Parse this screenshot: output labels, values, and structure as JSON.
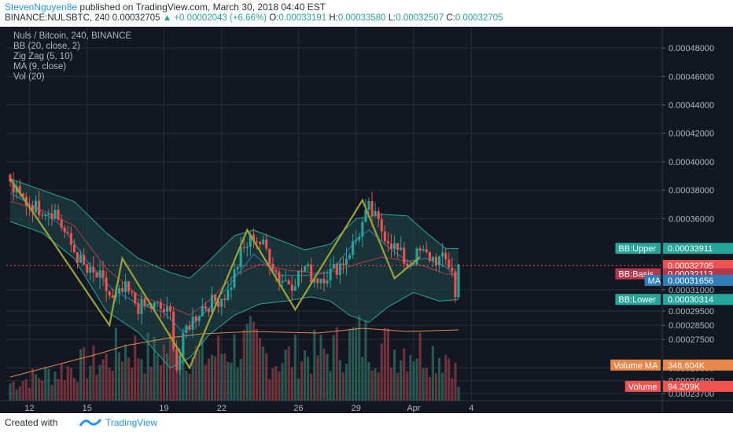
{
  "header": {
    "author": "StevenNguyen8e",
    "published_text": "published on TradingView.com, March 30, 2018 04:40 EST",
    "symbol": "BINANCE:NULSBTC, 240",
    "price": "0.00032705",
    "change": "+0.00002043 (+6.66%)",
    "o_label": "O:",
    "o": "0.00033191",
    "h_label": "H:",
    "h": "0.00033580",
    "l_label": "L:",
    "l": "0.00032507",
    "c_label": "C:",
    "c": "0.00032705"
  },
  "legend": [
    "Nuls / Bitcoin, 240, BINANCE",
    "BB (20, close, 2)",
    "Zig Zag (5, 10)",
    "MA (9, close)",
    "Vol (20)"
  ],
  "footer": {
    "created_with": "Created with",
    "brand": "TradingView"
  },
  "colors": {
    "background": "#131722",
    "grid": "#2a2e39",
    "text": "#b2b5be",
    "candle_up": "#26a69a",
    "candle_down": "#ef5350",
    "bb_line": "#26a69a",
    "bb_fill": "#1f4a4d",
    "bb_basis": "#b2384a",
    "ma": "#2e7db8",
    "zigzag": "#9aa337",
    "vol_up": "#2e6b5e",
    "vol_down": "#8a3a42",
    "vol_ma": "#e8874a"
  },
  "chart_data": {
    "type": "candlestick",
    "price_range": [
      0.000232,
      0.000495
    ],
    "price_ticks": [
      "0.00048000",
      "0.00046000",
      "0.00044000",
      "0.00042000",
      "0.00040000",
      "0.00038000",
      "0.00036000",
      "0.00031000",
      "0.00029500",
      "0.00028500",
      "0.00027500",
      "0.00025500",
      "0.00024600",
      "0.00023700"
    ],
    "x_ticks": [
      {
        "label": "12",
        "day": 12
      },
      {
        "label": "15",
        "day": 15
      },
      {
        "label": "19",
        "day": 19
      },
      {
        "label": "22",
        "day": 22
      },
      {
        "label": "26",
        "day": 26
      },
      {
        "label": "29",
        "day": 29
      },
      {
        "label": "Apr",
        "day": 32
      },
      {
        "label": "4",
        "day": 35
      }
    ],
    "first_day": 11.0,
    "bar_per_day": 6,
    "candle_points": [
      [
        0,
        0.000383
      ],
      [
        3,
        0.000375
      ],
      [
        8,
        0.000368
      ],
      [
        14,
        0.000365
      ],
      [
        18,
        0.000345
      ],
      [
        24,
        0.000322
      ],
      [
        28,
        0.000318
      ],
      [
        32,
        0.000302
      ],
      [
        36,
        0.00031
      ],
      [
        40,
        0.000298
      ],
      [
        46,
        0.000298
      ],
      [
        50,
        0.000292
      ],
      [
        52,
        0.000255
      ],
      [
        55,
        0.000283
      ],
      [
        60,
        0.000298
      ],
      [
        64,
        0.000302
      ],
      [
        68,
        0.000308
      ],
      [
        72,
        0.000335
      ],
      [
        76,
        0.000348
      ],
      [
        80,
        0.000338
      ],
      [
        84,
        0.000318
      ],
      [
        88,
        0.000315
      ],
      [
        92,
        0.000326
      ],
      [
        94,
        0.00032
      ],
      [
        96,
        0.000318
      ],
      [
        100,
        0.000322
      ],
      [
        104,
        0.00033
      ],
      [
        108,
        0.000345
      ],
      [
        112,
        0.000367
      ],
      [
        114,
        0.00036
      ],
      [
        116,
        0.000352
      ],
      [
        120,
        0.00034
      ],
      [
        124,
        0.000328
      ],
      [
        128,
        0.000336
      ],
      [
        132,
        0.000332
      ],
      [
        136,
        0.00033
      ],
      [
        138,
        0.000325
      ],
      [
        139,
        0.000304
      ],
      [
        140,
        0.000327
      ]
    ],
    "zigzag": [
      [
        0,
        0.000388
      ],
      [
        31,
        0.000285
      ],
      [
        35,
        0.000332
      ],
      [
        56,
        0.000255
      ],
      [
        74,
        0.000352
      ],
      [
        89,
        0.000296
      ],
      [
        110,
        0.000373
      ],
      [
        120,
        0.000318
      ],
      [
        128,
        0.000333
      ]
    ],
    "bb_upper": [
      [
        0,
        0.000388
      ],
      [
        10,
        0.00038
      ],
      [
        20,
        0.000372
      ],
      [
        30,
        0.00035
      ],
      [
        40,
        0.000332
      ],
      [
        50,
        0.000322
      ],
      [
        56,
        0.000318
      ],
      [
        62,
        0.00033
      ],
      [
        70,
        0.000348
      ],
      [
        76,
        0.000352
      ],
      [
        84,
        0.000345
      ],
      [
        92,
        0.000338
      ],
      [
        100,
        0.000342
      ],
      [
        108,
        0.00036
      ],
      [
        116,
        0.000363
      ],
      [
        124,
        0.000362
      ],
      [
        130,
        0.00035
      ],
      [
        136,
        0.000339
      ],
      [
        140,
        0.000339
      ]
    ],
    "bb_lower": [
      [
        0,
        0.000358
      ],
      [
        10,
        0.00035
      ],
      [
        20,
        0.000332
      ],
      [
        30,
        0.000295
      ],
      [
        40,
        0.00028
      ],
      [
        50,
        0.000255
      ],
      [
        56,
        0.000262
      ],
      [
        62,
        0.000278
      ],
      [
        70,
        0.000292
      ],
      [
        78,
        0.0003
      ],
      [
        86,
        0.000302
      ],
      [
        94,
        0.000305
      ],
      [
        100,
        0.000302
      ],
      [
        106,
        0.000292
      ],
      [
        112,
        0.000287
      ],
      [
        118,
        0.000298
      ],
      [
        126,
        0.000308
      ],
      [
        134,
        0.000302
      ],
      [
        140,
        0.000303
      ]
    ],
    "bb_basis": [
      [
        0,
        0.000372
      ],
      [
        10,
        0.000366
      ],
      [
        20,
        0.000355
      ],
      [
        30,
        0.000325
      ],
      [
        40,
        0.000306
      ],
      [
        50,
        0.000298
      ],
      [
        56,
        0.000292
      ],
      [
        62,
        0.000302
      ],
      [
        70,
        0.00032
      ],
      [
        78,
        0.000328
      ],
      [
        86,
        0.000324
      ],
      [
        94,
        0.000322
      ],
      [
        100,
        0.000322
      ],
      [
        108,
        0.000328
      ],
      [
        116,
        0.000333
      ],
      [
        124,
        0.00033
      ],
      [
        130,
        0.000326
      ],
      [
        136,
        0.000321
      ],
      [
        140,
        0.000321
      ]
    ],
    "ma": [
      [
        0,
        0.000378
      ],
      [
        8,
        0.000368
      ],
      [
        16,
        0.000355
      ],
      [
        24,
        0.00033
      ],
      [
        32,
        0.00031
      ],
      [
        40,
        0.0003
      ],
      [
        48,
        0.000294
      ],
      [
        54,
        0.00028
      ],
      [
        60,
        0.000292
      ],
      [
        68,
        0.000312
      ],
      [
        76,
        0.000335
      ],
      [
        84,
        0.00032
      ],
      [
        92,
        0.00032
      ],
      [
        100,
        0.000322
      ],
      [
        108,
        0.000345
      ],
      [
        112,
        0.000352
      ],
      [
        118,
        0.00034
      ],
      [
        124,
        0.00033
      ],
      [
        130,
        0.000332
      ],
      [
        136,
        0.000326
      ],
      [
        140,
        0.000317
      ]
    ],
    "volume_peaks": [
      [
        0,
        30
      ],
      [
        10,
        45
      ],
      [
        20,
        60
      ],
      [
        30,
        70
      ],
      [
        35,
        95
      ],
      [
        45,
        80
      ],
      [
        52,
        100
      ],
      [
        60,
        75
      ],
      [
        68,
        90
      ],
      [
        75,
        100
      ],
      [
        82,
        70
      ],
      [
        90,
        80
      ],
      [
        100,
        85
      ],
      [
        108,
        110
      ],
      [
        114,
        100
      ],
      [
        120,
        90
      ],
      [
        126,
        95
      ],
      [
        132,
        85
      ],
      [
        138,
        80
      ],
      [
        140,
        25
      ]
    ],
    "vol_ma_curve": [
      [
        0,
        30
      ],
      [
        14,
        45
      ],
      [
        28,
        60
      ],
      [
        36,
        70
      ],
      [
        50,
        80
      ],
      [
        60,
        85
      ],
      [
        76,
        88
      ],
      [
        96,
        86
      ],
      [
        110,
        92
      ],
      [
        124,
        88
      ],
      [
        140,
        90
      ]
    ],
    "labels": [
      {
        "name": "BB:Upper",
        "value": "0.00033911",
        "price": 0.00033911,
        "bg": "#26a69a"
      },
      {
        "name": "",
        "value": "0.00032705",
        "price": 0.00032705,
        "bg": "#ef5350"
      },
      {
        "name": "BB:Basis",
        "value": "0.00032113",
        "price": 0.00032113,
        "bg": "#b2384a"
      },
      {
        "name": "MA",
        "value": "0.00031656",
        "price": 0.00031656,
        "bg": "#2e7db8"
      },
      {
        "name": "BB:Lower",
        "value": "0.00030314",
        "price": 0.00030314,
        "bg": "#26a69a"
      },
      {
        "name": "Volume MA",
        "value": "346.604K",
        "price": 0.000257,
        "bg": "#e8874a"
      },
      {
        "name": "Volume",
        "value": "94.209K",
        "price": 0.000242,
        "bg": "#ef5350"
      }
    ]
  }
}
